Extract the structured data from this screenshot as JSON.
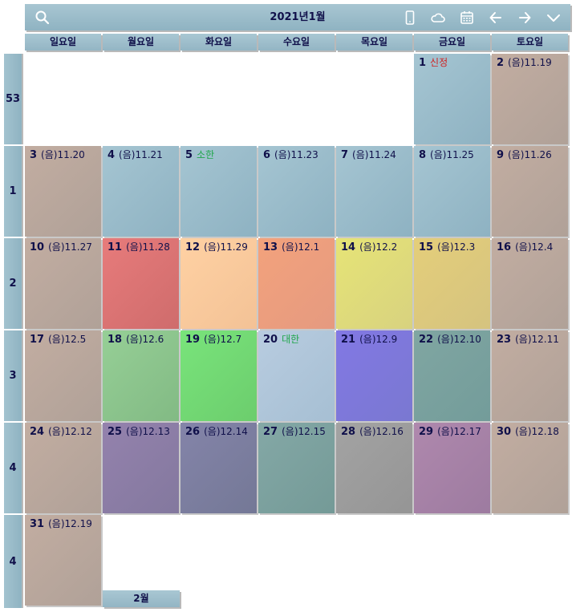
{
  "header": {
    "title": "2021년1월"
  },
  "icons": [
    "search-icon",
    "phone-icon",
    "cloud-icon",
    "calendar-icon",
    "arrow-left-icon",
    "arrow-right-icon",
    "chevron-down-icon"
  ],
  "weekdays": [
    "일요일",
    "월요일",
    "화요일",
    "수요일",
    "목요일",
    "금요일",
    "토요일"
  ],
  "weeks": [
    "53",
    "1",
    "2",
    "3",
    "4",
    "4"
  ],
  "colors": {
    "holiday": "#d02020",
    "solar_term": "#1fa64a",
    "text": "#10104a"
  },
  "days": [
    {
      "day": "1",
      "sub": "신정",
      "type": "holiday",
      "color": "blue"
    },
    {
      "day": "2",
      "sub": "(음)11.19",
      "type": "lunar",
      "color": "tan"
    },
    {
      "day": "3",
      "sub": "(음)11.20",
      "type": "lunar",
      "color": "tan"
    },
    {
      "day": "4",
      "sub": "(음)11.21",
      "type": "lunar",
      "color": "blue"
    },
    {
      "day": "5",
      "sub": "소한",
      "type": "term",
      "color": "blue"
    },
    {
      "day": "6",
      "sub": "(음)11.23",
      "type": "lunar",
      "color": "blue"
    },
    {
      "day": "7",
      "sub": "(음)11.24",
      "type": "lunar",
      "color": "blue"
    },
    {
      "day": "8",
      "sub": "(음)11.25",
      "type": "lunar",
      "color": "blue"
    },
    {
      "day": "9",
      "sub": "(음)11.26",
      "type": "lunar",
      "color": "tan"
    },
    {
      "day": "10",
      "sub": "(음)11.27",
      "type": "lunar",
      "color": "tan"
    },
    {
      "day": "11",
      "sub": "(음)11.28",
      "type": "lunar",
      "color": "red"
    },
    {
      "day": "12",
      "sub": "(음)11.29",
      "type": "lunar",
      "color": "peach"
    },
    {
      "day": "13",
      "sub": "(음)12.1",
      "type": "lunar",
      "color": "orange"
    },
    {
      "day": "14",
      "sub": "(음)12.2",
      "type": "lunar",
      "color": "yellow"
    },
    {
      "day": "15",
      "sub": "(음)12.3",
      "type": "lunar",
      "color": "gold"
    },
    {
      "day": "16",
      "sub": "(음)12.4",
      "type": "lunar",
      "color": "tan"
    },
    {
      "day": "17",
      "sub": "(음)12.5",
      "type": "lunar",
      "color": "tan"
    },
    {
      "day": "18",
      "sub": "(음)12.6",
      "type": "lunar",
      "color": "mint"
    },
    {
      "day": "19",
      "sub": "(음)12.7",
      "type": "lunar",
      "color": "green"
    },
    {
      "day": "20",
      "sub": "대한",
      "type": "term",
      "color": "pale"
    },
    {
      "day": "21",
      "sub": "(음)12.9",
      "type": "lunar",
      "color": "violet"
    },
    {
      "day": "22",
      "sub": "(음)12.10",
      "type": "lunar",
      "color": "teal"
    },
    {
      "day": "23",
      "sub": "(음)12.11",
      "type": "lunar",
      "color": "tan"
    },
    {
      "day": "24",
      "sub": "(음)12.12",
      "type": "lunar",
      "color": "tan"
    },
    {
      "day": "25",
      "sub": "(음)12.13",
      "type": "lunar",
      "color": "purple"
    },
    {
      "day": "26",
      "sub": "(음)12.14",
      "type": "lunar",
      "color": "slate"
    },
    {
      "day": "27",
      "sub": "(음)12.15",
      "type": "lunar",
      "color": "teal2"
    },
    {
      "day": "28",
      "sub": "(음)12.16",
      "type": "lunar",
      "color": "gray"
    },
    {
      "day": "29",
      "sub": "(음)12.17",
      "type": "lunar",
      "color": "mauve"
    },
    {
      "day": "30",
      "sub": "(음)12.18",
      "type": "lunar",
      "color": "tan"
    },
    {
      "day": "31",
      "sub": "(음)12.19",
      "type": "lunar",
      "color": "tan"
    }
  ],
  "footer": {
    "next_month": "2월"
  }
}
